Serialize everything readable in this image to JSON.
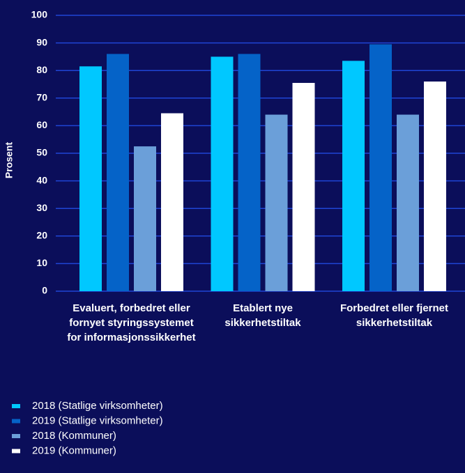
{
  "chart_data": {
    "type": "bar",
    "y_label": "Prosent",
    "categories": [
      "Evaluert, forbedret eller fornyet styringssystemet for informasjonssikkerhet",
      "Etablert nye sikkerhetstiltak",
      "Forbedret eller fjernet sikkerhetstiltak"
    ],
    "series": [
      {
        "name": "2018 (Statlige virksomheter)",
        "color": "#00c8ff",
        "values": [
          81.5,
          85,
          83.5
        ]
      },
      {
        "name": "2019 (Statlige virksomheter)",
        "color": "#0563c8",
        "values": [
          86,
          86,
          89.5
        ]
      },
      {
        "name": "2018 (Kommuner)",
        "color": "#6b9fd9",
        "values": [
          52.5,
          64,
          64
        ]
      },
      {
        "name": "2019 (Kommuner)",
        "color": "#ffffff",
        "values": [
          64.5,
          75.5,
          76
        ]
      }
    ],
    "ylim": [
      0,
      100
    ],
    "yticks": [
      0,
      10,
      20,
      30,
      40,
      50,
      60,
      70,
      80,
      90,
      100
    ],
    "grid": true,
    "grid_color": "#1f45d6",
    "legend": "bottom-left"
  }
}
